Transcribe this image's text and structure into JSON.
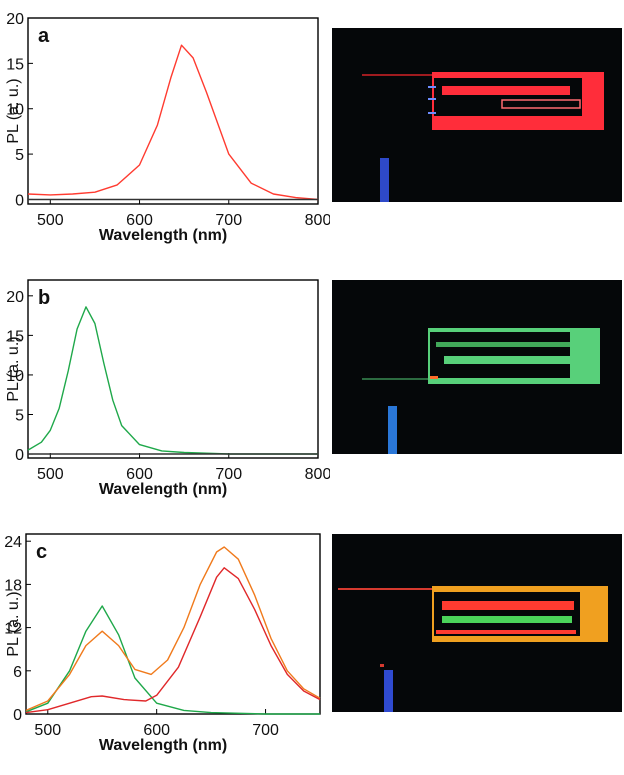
{
  "chart_data": [
    {
      "type": "line",
      "panel_label": "a",
      "xlabel": "Wavelength (nm)",
      "ylabel": "PL (a. u.)",
      "xlim": [
        475,
        800
      ],
      "ylim": [
        -0.5,
        20
      ],
      "xticks": [
        500,
        600,
        700,
        800
      ],
      "yticks": [
        0,
        5,
        10,
        15,
        20
      ],
      "series": [
        {
          "color": "#ff3b30",
          "peak": 647,
          "amp": 16.8,
          "width": 42,
          "offset": 0.2,
          "x": [
            475,
            500,
            525,
            550,
            575,
            600,
            620,
            635,
            647,
            660,
            675,
            700,
            725,
            750,
            775,
            800
          ],
          "y": [
            0.6,
            0.5,
            0.6,
            0.8,
            1.6,
            3.8,
            8.2,
            13.4,
            17.0,
            15.6,
            11.8,
            5.0,
            1.8,
            0.6,
            0.2,
            0.0
          ]
        },
        {
          "color": "#333333",
          "x": [
            475,
            800
          ],
          "y": [
            0.0,
            0.0
          ]
        }
      ]
    },
    {
      "type": "line",
      "panel_label": "b",
      "xlabel": "Wavelength (nm)",
      "ylabel": "PL (a. u.)",
      "xlim": [
        475,
        800
      ],
      "ylim": [
        -0.5,
        22
      ],
      "xticks": [
        500,
        600,
        700,
        800
      ],
      "yticks": [
        0,
        5,
        10,
        15,
        20
      ],
      "series": [
        {
          "color": "#1fa84a",
          "x": [
            475,
            490,
            500,
            510,
            520,
            530,
            540,
            550,
            560,
            570,
            580,
            600,
            625,
            650,
            700,
            800
          ],
          "y": [
            0.5,
            1.5,
            3.0,
            5.8,
            10.5,
            15.8,
            18.6,
            16.5,
            11.5,
            6.8,
            3.6,
            1.2,
            0.4,
            0.2,
            0.0,
            0.0
          ]
        },
        {
          "color": "#333333",
          "x": [
            475,
            800
          ],
          "y": [
            0.0,
            0.0
          ]
        }
      ]
    },
    {
      "type": "line",
      "panel_label": "c",
      "xlabel": "Wavelength (nm)",
      "ylabel": "PL (a. u.)",
      "xlim": [
        480,
        750
      ],
      "ylim": [
        0,
        25
      ],
      "xticks": [
        500,
        600,
        700
      ],
      "yticks": [
        0,
        6,
        12,
        18,
        24
      ],
      "series": [
        {
          "color": "#1fa84a",
          "x": [
            480,
            500,
            520,
            535,
            550,
            565,
            580,
            600,
            625,
            650,
            700,
            750
          ],
          "y": [
            0.3,
            1.5,
            6.0,
            11.5,
            15.0,
            11.0,
            5.0,
            1.5,
            0.5,
            0.2,
            0.0,
            0.0
          ]
        },
        {
          "color": "#f07a1c",
          "x": [
            480,
            500,
            520,
            535,
            550,
            565,
            580,
            595,
            610,
            625,
            640,
            655,
            662,
            675,
            690,
            705,
            720,
            735,
            750
          ],
          "y": [
            0.5,
            1.8,
            5.5,
            9.5,
            11.5,
            9.5,
            6.2,
            5.5,
            7.5,
            12.0,
            18.0,
            22.5,
            23.2,
            21.5,
            16.5,
            10.5,
            6.0,
            3.5,
            2.2
          ]
        },
        {
          "color": "#e0282a",
          "x": [
            480,
            500,
            520,
            540,
            550,
            570,
            590,
            600,
            620,
            640,
            655,
            662,
            675,
            690,
            705,
            720,
            735,
            750
          ],
          "y": [
            0.2,
            0.6,
            1.5,
            2.4,
            2.5,
            2.0,
            1.8,
            2.6,
            6.5,
            13.5,
            19.0,
            20.3,
            18.8,
            14.5,
            9.5,
            5.5,
            3.2,
            2.0
          ]
        }
      ]
    }
  ]
}
